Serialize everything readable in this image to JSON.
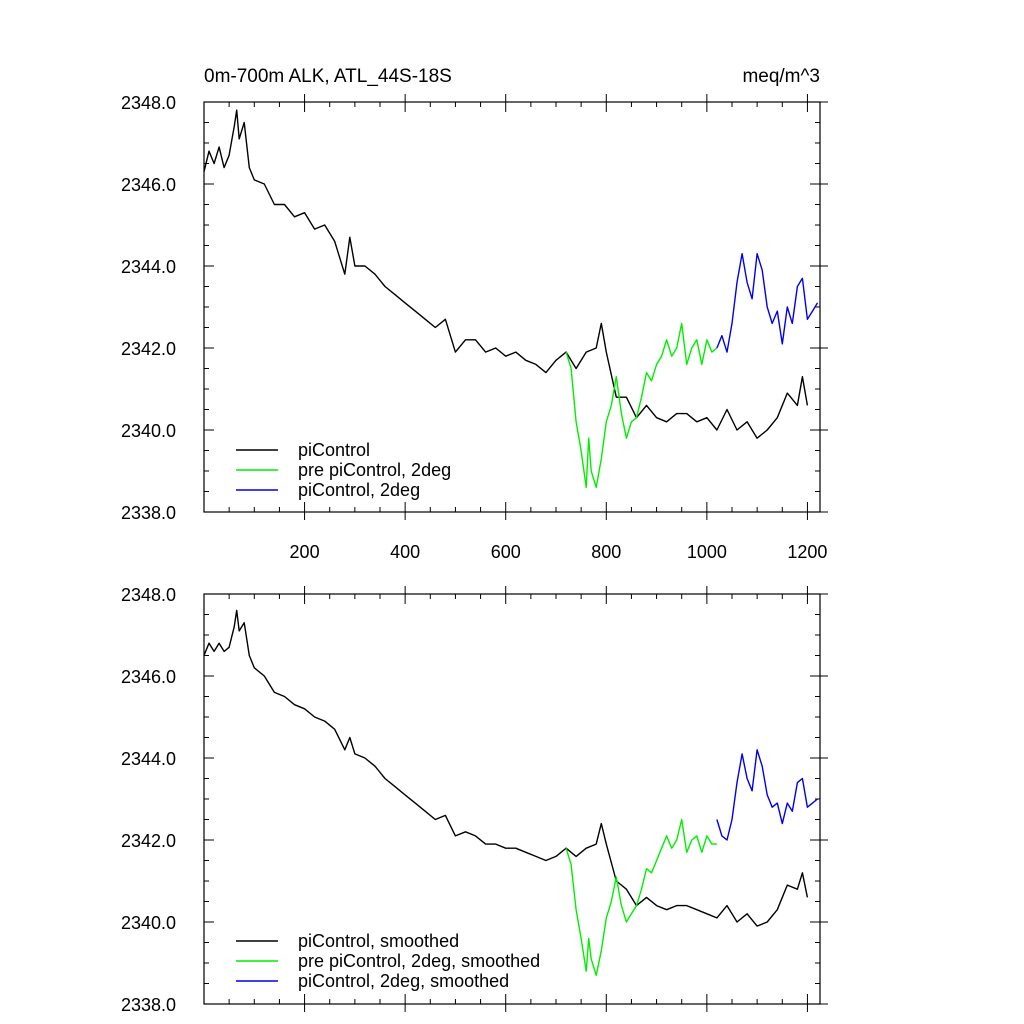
{
  "chart_data": [
    {
      "type": "line",
      "title": "0m-700m ALK, ATL_44S-18S",
      "units": "meq/m^3",
      "xlim": [
        0,
        1225
      ],
      "ylim": [
        2338.0,
        2348.0
      ],
      "x_ticks": [
        200,
        400,
        600,
        800,
        1000,
        1200
      ],
      "x_tick_labels": [
        "200",
        "400",
        "600",
        "800",
        "1000",
        "1200"
      ],
      "y_ticks": [
        2338.0,
        2340.0,
        2342.0,
        2344.0,
        2346.0,
        2348.0
      ],
      "y_tick_labels": [
        "2338.0",
        "2340.0",
        "2342.0",
        "2344.0",
        "2346.0",
        "2348.0"
      ],
      "legend_position": "bottom-left",
      "series": [
        {
          "name": "piControl",
          "color": "#000000",
          "x": [
            0,
            10,
            20,
            30,
            40,
            50,
            60,
            65,
            70,
            80,
            90,
            100,
            120,
            140,
            160,
            180,
            200,
            220,
            240,
            260,
            280,
            290,
            300,
            320,
            340,
            360,
            380,
            400,
            420,
            440,
            460,
            480,
            500,
            520,
            540,
            560,
            580,
            600,
            620,
            640,
            660,
            680,
            700,
            720,
            740,
            760,
            780,
            790,
            800,
            820,
            840,
            860,
            880,
            900,
            920,
            940,
            960,
            980,
            1000,
            1020,
            1040,
            1060,
            1080,
            1100,
            1120,
            1140,
            1160,
            1180,
            1190,
            1200
          ],
          "values": [
            2346.3,
            2346.8,
            2346.5,
            2346.9,
            2346.4,
            2346.7,
            2347.4,
            2347.8,
            2347.1,
            2347.5,
            2346.4,
            2346.1,
            2346.0,
            2345.5,
            2345.5,
            2345.2,
            2345.3,
            2344.9,
            2345.0,
            2344.6,
            2343.8,
            2344.7,
            2344.0,
            2344.0,
            2343.8,
            2343.5,
            2343.3,
            2343.1,
            2342.9,
            2342.7,
            2342.5,
            2342.7,
            2341.9,
            2342.2,
            2342.2,
            2341.9,
            2342.0,
            2341.8,
            2341.9,
            2341.7,
            2341.6,
            2341.4,
            2341.7,
            2341.9,
            2341.5,
            2341.9,
            2342.0,
            2342.6,
            2341.9,
            2340.8,
            2340.8,
            2340.3,
            2340.6,
            2340.3,
            2340.2,
            2340.4,
            2340.4,
            2340.2,
            2340.3,
            2340.0,
            2340.5,
            2340.0,
            2340.2,
            2339.8,
            2340.0,
            2340.3,
            2340.9,
            2340.6,
            2341.3,
            2340.6
          ]
        },
        {
          "name": "pre piControl, 2deg",
          "color": "#00ee00",
          "x": [
            720,
            730,
            740,
            750,
            760,
            765,
            770,
            780,
            790,
            800,
            810,
            820,
            830,
            840,
            850,
            860,
            870,
            880,
            890,
            900,
            910,
            920,
            930,
            940,
            950,
            960,
            970,
            980,
            990,
            1000,
            1010,
            1020
          ],
          "values": [
            2341.9,
            2341.5,
            2340.2,
            2339.5,
            2338.6,
            2339.8,
            2339.0,
            2338.6,
            2339.3,
            2340.2,
            2340.6,
            2341.3,
            2340.4,
            2339.8,
            2340.2,
            2340.3,
            2340.8,
            2341.4,
            2341.2,
            2341.6,
            2341.8,
            2342.2,
            2341.8,
            2342.0,
            2342.6,
            2341.6,
            2342.0,
            2342.2,
            2341.6,
            2342.2,
            2341.9,
            2342.0
          ]
        },
        {
          "name": "piControl, 2deg",
          "color": "#0000ee",
          "x": [
            1020,
            1030,
            1040,
            1050,
            1060,
            1070,
            1080,
            1090,
            1100,
            1110,
            1120,
            1130,
            1140,
            1150,
            1160,
            1170,
            1180,
            1190,
            1200,
            1210,
            1220
          ],
          "values": [
            2342.0,
            2342.3,
            2341.9,
            2342.6,
            2343.6,
            2344.3,
            2343.6,
            2343.2,
            2344.3,
            2343.9,
            2343.0,
            2342.6,
            2342.9,
            2342.1,
            2343.0,
            2342.6,
            2343.5,
            2343.7,
            2342.7,
            2342.9,
            2343.1
          ]
        }
      ]
    },
    {
      "type": "line",
      "xlim": [
        0,
        1225
      ],
      "ylim": [
        2338.0,
        2348.0
      ],
      "y_ticks": [
        2338.0,
        2340.0,
        2342.0,
        2344.0,
        2346.0,
        2348.0
      ],
      "y_tick_labels": [
        "2338.0",
        "2340.0",
        "2342.0",
        "2344.0",
        "2346.0",
        "2348.0"
      ],
      "legend_position": "bottom-left",
      "series": [
        {
          "name": "piControl, smoothed",
          "color": "#000000",
          "x": [
            0,
            10,
            20,
            30,
            40,
            50,
            60,
            65,
            70,
            80,
            90,
            100,
            120,
            140,
            160,
            180,
            200,
            220,
            240,
            260,
            280,
            290,
            300,
            320,
            340,
            360,
            380,
            400,
            420,
            440,
            460,
            480,
            500,
            520,
            540,
            560,
            580,
            600,
            620,
            640,
            660,
            680,
            700,
            720,
            740,
            760,
            780,
            790,
            800,
            820,
            840,
            860,
            880,
            900,
            920,
            940,
            960,
            980,
            1000,
            1020,
            1040,
            1060,
            1080,
            1100,
            1120,
            1140,
            1160,
            1180,
            1190,
            1200
          ],
          "values": [
            2346.5,
            2346.8,
            2346.6,
            2346.8,
            2346.6,
            2346.7,
            2347.2,
            2347.6,
            2347.1,
            2347.3,
            2346.5,
            2346.2,
            2346.0,
            2345.6,
            2345.5,
            2345.3,
            2345.2,
            2345.0,
            2344.9,
            2344.7,
            2344.2,
            2344.5,
            2344.1,
            2344.0,
            2343.8,
            2343.5,
            2343.3,
            2343.1,
            2342.9,
            2342.7,
            2342.5,
            2342.6,
            2342.1,
            2342.2,
            2342.1,
            2341.9,
            2341.9,
            2341.8,
            2341.8,
            2341.7,
            2341.6,
            2341.5,
            2341.6,
            2341.8,
            2341.6,
            2341.8,
            2341.9,
            2342.4,
            2341.9,
            2341.0,
            2340.8,
            2340.4,
            2340.6,
            2340.4,
            2340.3,
            2340.4,
            2340.4,
            2340.3,
            2340.2,
            2340.1,
            2340.4,
            2340.0,
            2340.2,
            2339.9,
            2340.0,
            2340.3,
            2340.9,
            2340.8,
            2341.2,
            2340.6
          ]
        },
        {
          "name": "pre piControl, 2deg, smoothed",
          "color": "#00ee00",
          "x": [
            720,
            730,
            740,
            750,
            760,
            765,
            770,
            780,
            790,
            800,
            810,
            820,
            830,
            840,
            850,
            860,
            870,
            880,
            890,
            900,
            910,
            920,
            930,
            940,
            950,
            960,
            970,
            980,
            990,
            1000,
            1010,
            1020
          ],
          "values": [
            2341.8,
            2341.4,
            2340.3,
            2339.6,
            2338.8,
            2339.6,
            2339.1,
            2338.7,
            2339.3,
            2340.1,
            2340.5,
            2341.1,
            2340.4,
            2340.0,
            2340.2,
            2340.4,
            2340.8,
            2341.3,
            2341.2,
            2341.5,
            2341.8,
            2342.1,
            2341.8,
            2342.0,
            2342.5,
            2341.7,
            2342.0,
            2342.1,
            2341.7,
            2342.1,
            2341.9,
            2341.9
          ]
        },
        {
          "name": "piControl, 2deg, smoothed",
          "color": "#0000ee",
          "x": [
            1020,
            1030,
            1040,
            1050,
            1060,
            1070,
            1080,
            1090,
            1100,
            1110,
            1120,
            1130,
            1140,
            1150,
            1160,
            1170,
            1180,
            1190,
            1200,
            1210,
            1220
          ],
          "values": [
            2342.5,
            2342.1,
            2342.0,
            2342.5,
            2343.4,
            2344.1,
            2343.5,
            2343.2,
            2344.2,
            2343.8,
            2343.1,
            2342.8,
            2342.9,
            2342.4,
            2342.9,
            2342.7,
            2343.4,
            2343.5,
            2342.8,
            2342.9,
            2343.0
          ]
        }
      ]
    }
  ]
}
